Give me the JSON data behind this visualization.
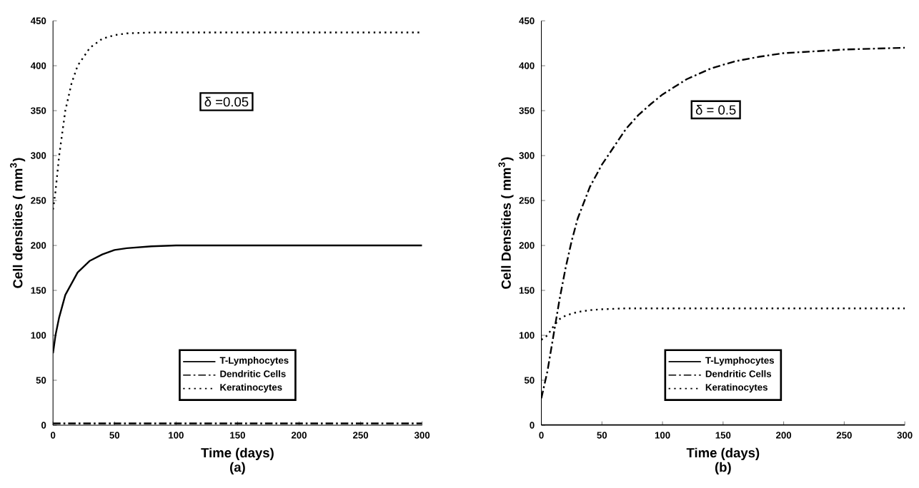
{
  "chart_data": [
    {
      "type": "line",
      "xlabel": "Time (days)",
      "ylabel": "Cell densities ( mm$^{3}$)",
      "annotations": [
        "δ =0.05",
        "(a)"
      ],
      "xlim": [
        0,
        300
      ],
      "ylim": [
        0,
        450
      ],
      "xticks": [
        0,
        50,
        100,
        150,
        200,
        250,
        300
      ],
      "yticks": [
        0,
        50,
        100,
        150,
        200,
        250,
        300,
        350,
        400,
        450
      ],
      "legend": "bottom",
      "grid": false,
      "marker": "none",
      "series": [
        {
          "name": "T-Lymphocytes",
          "color": "#000000",
          "line_style": "solid",
          "x": [
            0,
            2,
            5,
            10,
            20,
            30,
            40,
            50,
            60,
            80,
            100,
            300
          ],
          "values": [
            80,
            100,
            120,
            145,
            170,
            183,
            190,
            195,
            197,
            199,
            200,
            200
          ]
        },
        {
          "name": "Dendritic Cells",
          "color": "#000000",
          "line_style": "dashed",
          "x": [
            0,
            300
          ],
          "values": [
            2,
            2
          ]
        },
        {
          "name": "Keratinocytes",
          "color": "#000000",
          "line_style": "dotted",
          "x": [
            0,
            2,
            5,
            10,
            15,
            20,
            30,
            40,
            50,
            60,
            80,
            300
          ],
          "values": [
            240,
            260,
            300,
            350,
            380,
            400,
            420,
            430,
            434,
            436,
            437,
            437
          ]
        }
      ]
    },
    {
      "type": "line",
      "xlabel": "Time (days)",
      "ylabel": "Cell Densities ( mm$^{3}$)",
      "annotations": [
        "δ = 0.5",
        "(b)"
      ],
      "xlim": [
        0,
        300
      ],
      "ylim": [
        0,
        450
      ],
      "xticks": [
        0,
        50,
        100,
        150,
        200,
        250,
        300
      ],
      "yticks": [
        0,
        50,
        100,
        150,
        200,
        250,
        300,
        350,
        400,
        450
      ],
      "legend": "bottom",
      "grid": false,
      "marker": "none",
      "series": [
        {
          "name": "T-Lymphocytes",
          "color": "#000000",
          "line_style": "solid",
          "x": [
            0,
            300
          ],
          "values": [
            0,
            0
          ]
        },
        {
          "name": "Dendritic Cells",
          "color": "#000000",
          "line_style": "dashed",
          "x": [
            0,
            5,
            10,
            15,
            20,
            25,
            30,
            40,
            50,
            60,
            70,
            80,
            90,
            100,
            120,
            140,
            160,
            180,
            200,
            250,
            300
          ],
          "values": [
            30,
            60,
            100,
            140,
            175,
            205,
            230,
            265,
            290,
            310,
            330,
            345,
            357,
            368,
            385,
            397,
            405,
            410,
            414,
            418,
            420
          ]
        },
        {
          "name": "Keratinocytes",
          "color": "#000000",
          "line_style": "dotted",
          "x": [
            0,
            5,
            10,
            15,
            20,
            30,
            40,
            50,
            70,
            300
          ],
          "values": [
            95,
            100,
            110,
            118,
            122,
            126,
            128,
            129,
            130,
            130
          ]
        }
      ]
    }
  ]
}
